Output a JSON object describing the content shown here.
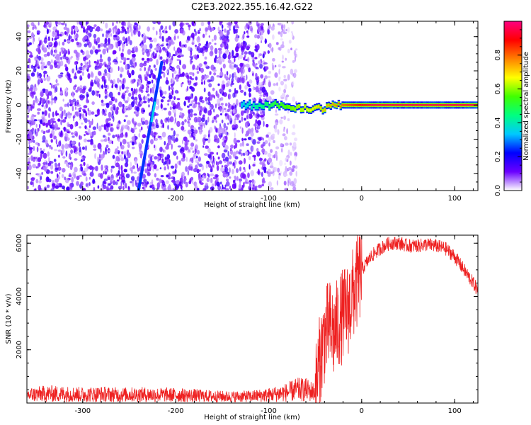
{
  "title": "C2E3.2022.355.16.42.G22",
  "chart_data": [
    {
      "type": "heatmap",
      "title": "C2E3.2022.355.16.42.G22",
      "xlabel": "Height of straight line (km)",
      "ylabel": "Frequency (Hz)",
      "xlim": [
        -360,
        125
      ],
      "ylim": [
        -50,
        49
      ],
      "x_ticks": [
        -300,
        -200,
        -100,
        0,
        100
      ],
      "y_ticks": [
        -40,
        -20,
        0,
        20,
        40
      ],
      "x_tick_labels": [
        "-300",
        "-200",
        "-100",
        "0",
        "100"
      ],
      "y_tick_labels": [
        "-40",
        "-20",
        "0",
        "20",
        "40"
      ],
      "colorbar": {
        "label": "Normalized spectral amplitude",
        "range": [
          0,
          1
        ],
        "ticks": [
          0.0,
          0.2,
          0.4,
          0.6,
          0.8
        ],
        "tick_labels": [
          "0.0",
          "0.2",
          "0.4",
          "0.6",
          "0.8"
        ],
        "colormap": "rainbow",
        "colors": [
          "#ffffff",
          "#6a00ff",
          "#0000ff",
          "#00c8ff",
          "#00ff80",
          "#40ff00",
          "#ffff00",
          "#ff8000",
          "#ff0000",
          "#ff0080"
        ]
      },
      "features": [
        {
          "kind": "noise",
          "x_range": [
            -360,
            -100
          ],
          "y_range": [
            -50,
            49
          ],
          "amplitude": 0.12
        },
        {
          "kind": "sparse-noise",
          "x_range": [
            -100,
            -70
          ],
          "y_range": [
            -50,
            49
          ],
          "amplitude": 0.05
        },
        {
          "kind": "line",
          "from": [
            -240,
            -50
          ],
          "to": [
            -215,
            25
          ],
          "amplitude": 0.25
        },
        {
          "kind": "band",
          "x_range": [
            -130,
            125
          ],
          "freq_hz": 0,
          "amplitude_start": 0.35,
          "amplitude_end": 0.95
        }
      ]
    },
    {
      "type": "line",
      "xlabel": "Height of straight line (km)",
      "ylabel": "SNR (10 * v/v)",
      "xlim": [
        -360,
        125
      ],
      "ylim": [
        0,
        6300
      ],
      "x_ticks": [
        -300,
        -200,
        -100,
        0,
        100
      ],
      "y_ticks": [
        2000,
        4000,
        6000
      ],
      "x_tick_labels": [
        "-300",
        "-200",
        "-100",
        "0",
        "100"
      ],
      "y_tick_labels": [
        "2000",
        "4000",
        "6000"
      ],
      "color": "#ee2020",
      "series": [
        {
          "x": [
            -360,
            -340,
            -320,
            -300,
            -280,
            -260,
            -240,
            -220,
            -200,
            -180,
            -160,
            -140,
            -120,
            -100,
            -80,
            -70,
            -60,
            -50,
            -45,
            -40,
            -35,
            -30,
            -25,
            -20,
            -15,
            -10,
            -5,
            0,
            10,
            20,
            30,
            40,
            50,
            60,
            70,
            80,
            90,
            100,
            110,
            120,
            125
          ],
          "y": [
            300,
            350,
            340,
            320,
            330,
            310,
            320,
            310,
            300,
            280,
            250,
            240,
            250,
            300,
            400,
            500,
            500,
            400,
            1600,
            2500,
            2900,
            2600,
            3000,
            3300,
            3500,
            4000,
            4500,
            5000,
            5500,
            5800,
            6000,
            6000,
            5900,
            5900,
            5950,
            5900,
            5800,
            5500,
            5000,
            4500,
            4200
          ]
        }
      ]
    }
  ]
}
